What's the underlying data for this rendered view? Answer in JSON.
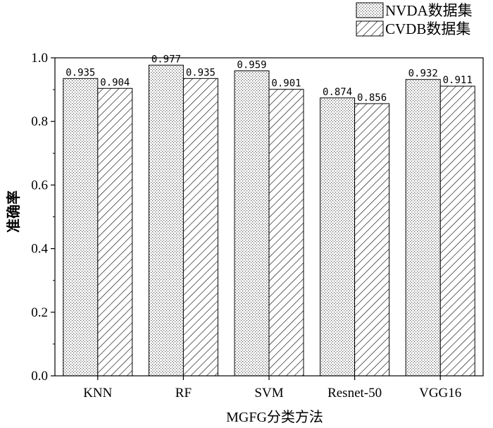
{
  "chart_data": {
    "type": "bar",
    "categories": [
      "KNN",
      "RF",
      "SVM",
      "Resnet-50",
      "VGG16"
    ],
    "series": [
      {
        "name": "NVDA数据集",
        "values": [
          0.935,
          0.977,
          0.959,
          0.874,
          0.932
        ],
        "data_labels": [
          "0.935",
          "0.977",
          "0.959",
          "0.874",
          "0.932"
        ],
        "pattern": "dots"
      },
      {
        "name": "CVDB数据集",
        "values": [
          0.904,
          0.935,
          0.901,
          0.856,
          0.911
        ],
        "data_labels": [
          "0.904",
          "0.935",
          "0.901",
          "0.856",
          "0.911"
        ],
        "pattern": "diagonal-hatch"
      }
    ],
    "xlabel": "MGFG分类方法",
    "ylabel": "准确率",
    "ylim": [
      0,
      1.0
    ],
    "yticks": [
      0.0,
      0.2,
      0.4,
      0.6,
      0.8,
      1.0
    ],
    "ytick_labels": [
      "0.0",
      "0.2",
      "0.4",
      "0.6",
      "0.8",
      "1.0"
    ],
    "grid": false,
    "legend_position": "top-right"
  }
}
